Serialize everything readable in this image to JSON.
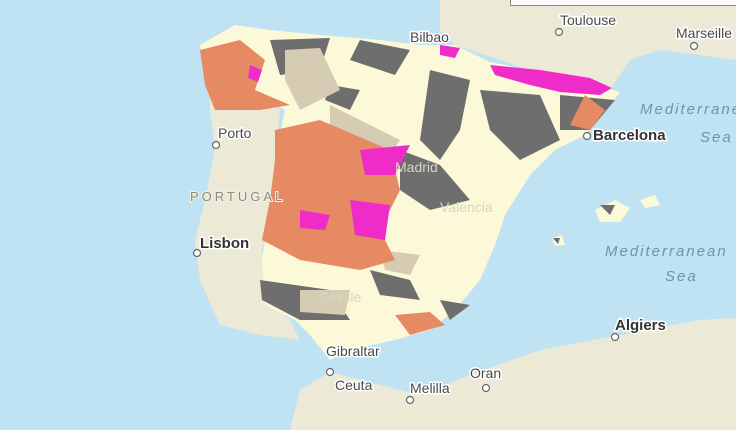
{
  "map": {
    "labels": {
      "toulouse": "Toulouse",
      "marseille": "Marseille",
      "bilbao": "Bilbao",
      "barcelona": "Barcelona",
      "porto": "Porto",
      "portugal": "PORTUGAL",
      "lisbon": "Lisbon",
      "madrid": "Madrid",
      "valencia": "Valencia",
      "seville": "Seville",
      "gibraltar": "Gibraltar",
      "ceuta": "Ceuta",
      "melilla": "Melilla",
      "oran": "Oran",
      "algiers": "Algiers",
      "sea1_line1": "Mediterranean",
      "sea1_line2": "Sea",
      "sea2_line1": "Mediterranean",
      "sea2_line2": "Sea"
    },
    "colors": {
      "ocean": "#bfe3f2",
      "land": "#ece9d6",
      "spain_fill": "#fcf9d9",
      "layer_gray": "#6e6e6e",
      "layer_tan": "#d6ccb4",
      "layer_orange": "#e58a62",
      "layer_magenta": "#f02cc8"
    }
  }
}
